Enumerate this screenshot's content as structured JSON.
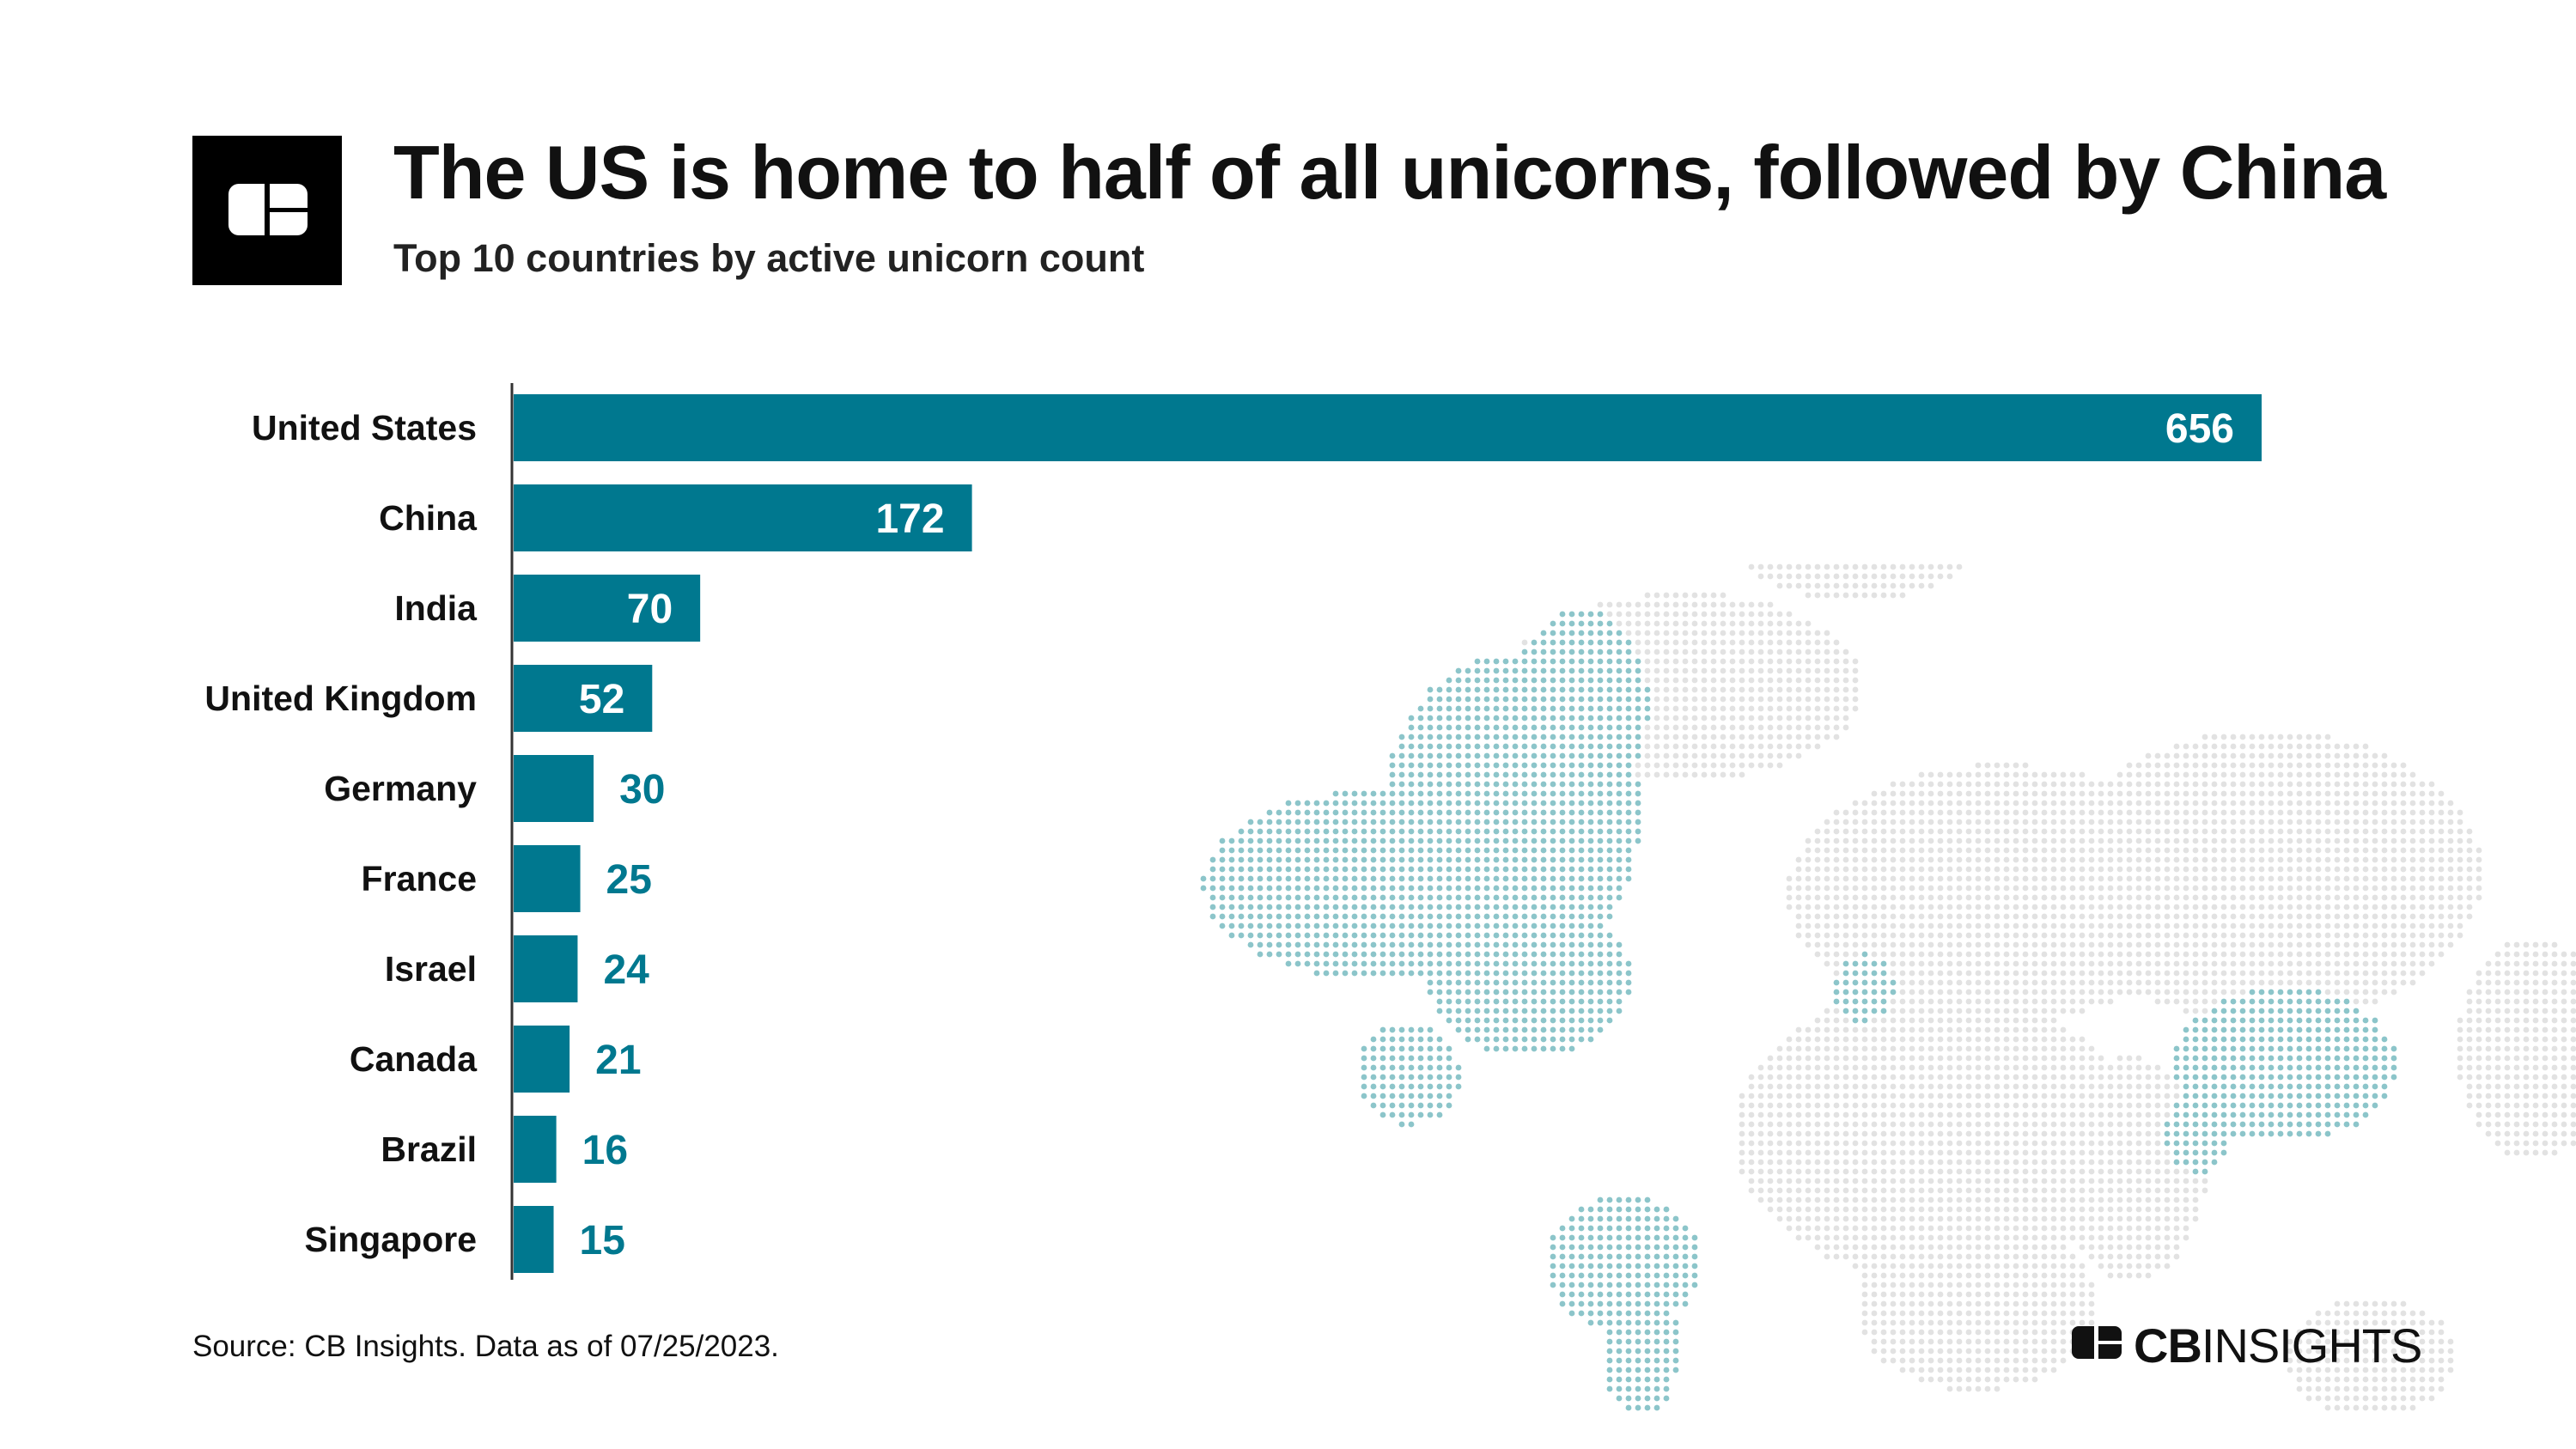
{
  "header": {
    "title": "The US is home to half of all unicorns, followed by China",
    "subtitle": "Top 10 countries by active unicorn count",
    "logo_icon": "cb-insights-logo-icon"
  },
  "chart_data": {
    "type": "bar",
    "orientation": "horizontal",
    "title": "The US is home to half of all unicorns, followed by China",
    "subtitle": "Top 10 countries by active unicorn count",
    "categories": [
      "United States",
      "China",
      "India",
      "United Kingdom",
      "Germany",
      "France",
      "Israel",
      "Canada",
      "Brazil",
      "Singapore"
    ],
    "values": [
      656,
      172,
      70,
      52,
      30,
      25,
      24,
      21,
      16,
      15
    ],
    "xlim": [
      0,
      656
    ],
    "data_labels": "shown",
    "grid": false,
    "legend": "none",
    "background": "dotted world map, highlighted regions: North America, China, India, United Kingdom, Brazil"
  },
  "colors": {
    "bar": "#00788f",
    "label_inside": "#ffffff",
    "label_outside": "#00788f",
    "map_highlight": "#8cc5ca",
    "map_base": "#e2e2e2"
  },
  "footer": {
    "source": "Source: CB Insights. Data as of 07/25/2023.",
    "brand_bold": "CB",
    "brand_regular": "INSIGHTS"
  }
}
